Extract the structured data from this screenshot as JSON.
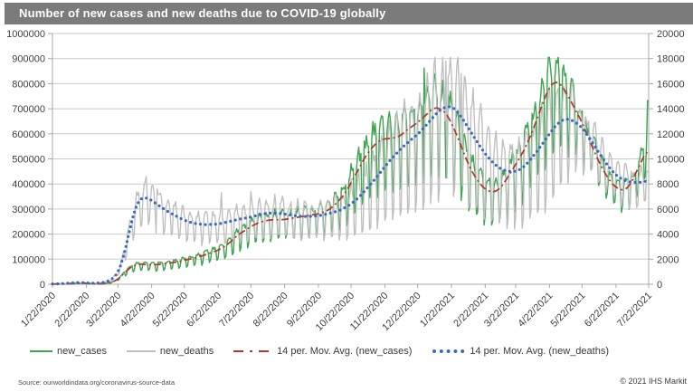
{
  "title": "Number of new cases and new deaths due to COVID-19 globally",
  "footer": {
    "source": "Source: ourworldindata.org/coronavirus-source-data",
    "copyright": "© 2021 IHS Markit"
  },
  "colors": {
    "title_bar": "#7B7B7B",
    "title_text": "#FFFFFF",
    "grid": "#CBCBCB",
    "axis": "#A8A8A8",
    "axis_text": "#3F3F3F",
    "new_cases": "#3FA652",
    "new_deaths": "#BFBFBF",
    "ma_cases": "#B4382E",
    "ma_deaths": "#3A6BC0"
  },
  "legend": [
    {
      "label": "new_cases",
      "series": "new_cases",
      "style": "solid"
    },
    {
      "label": "new_deaths",
      "series": "new_deaths",
      "style": "solid"
    },
    {
      "label": "14 per. Mov. Avg. (new_cases)",
      "series": "ma_cases",
      "style": "dashdot"
    },
    {
      "label": "14 per. Mov. Avg. (new_deaths)",
      "series": "ma_deaths",
      "style": "dotted"
    }
  ],
  "chart_data": {
    "type": "line",
    "title": "Number of new cases and new deaths due to COVID-19 globally",
    "x_tick_labels": [
      "1/22/2020",
      "2/22/2020",
      "3/22/2020",
      "4/22/2020",
      "5/22/2020",
      "6/22/2020",
      "7/22/2020",
      "8/22/2020",
      "9/22/2020",
      "10/22/2020",
      "11/22/2020",
      "12/22/2020",
      "1/22/2021",
      "2/22/2021",
      "3/22/2021",
      "4/22/2021",
      "5/22/2021",
      "6/22/2021",
      "7/22/2021"
    ],
    "x_tick_days": [
      0,
      31,
      60,
      91,
      121,
      152,
      182,
      213,
      244,
      274,
      305,
      335,
      366,
      397,
      425,
      456,
      486,
      517,
      547
    ],
    "days_total": 547,
    "last_day": 546,
    "left_axis": {
      "min": 0,
      "max": 1000000,
      "step": 100000,
      "tick_labels": [
        "0",
        "100000",
        "200000",
        "300000",
        "400000",
        "500000",
        "600000",
        "700000",
        "800000",
        "900000",
        "1000000"
      ]
    },
    "right_axis": {
      "min": 0,
      "max": 20000,
      "step": 2000,
      "tick_labels": [
        "0",
        "2000",
        "4000",
        "6000",
        "8000",
        "10000",
        "12000",
        "14000",
        "16000",
        "18000",
        "20000"
      ]
    },
    "series": [
      {
        "name": "new_cases",
        "axis": "left",
        "color_key": "new_cases",
        "style": "solid",
        "kind": "raw",
        "base": "cases"
      },
      {
        "name": "new_deaths",
        "axis": "right",
        "color_key": "new_deaths",
        "style": "solid",
        "kind": "raw",
        "base": "deaths"
      },
      {
        "name": "14 per. Mov. Avg. (new_cases)",
        "axis": "left",
        "color_key": "ma_cases",
        "style": "dashdot",
        "kind": "avg",
        "base": "cases"
      },
      {
        "name": "14 per. Mov. Avg. (new_deaths)",
        "axis": "right",
        "color_key": "ma_deaths",
        "style": "dotted",
        "kind": "avg",
        "base": "deaths"
      }
    ],
    "cases_avg_points": [
      [
        0,
        600
      ],
      [
        10,
        1500
      ],
      [
        20,
        2500
      ],
      [
        28,
        5000
      ],
      [
        34,
        2200
      ],
      [
        42,
        1500
      ],
      [
        48,
        2500
      ],
      [
        55,
        8000
      ],
      [
        60,
        20000
      ],
      [
        65,
        40000
      ],
      [
        70,
        62000
      ],
      [
        75,
        76000
      ],
      [
        80,
        81000
      ],
      [
        85,
        79000
      ],
      [
        91,
        77000
      ],
      [
        97,
        79000
      ],
      [
        105,
        83000
      ],
      [
        113,
        88000
      ],
      [
        121,
        96000
      ],
      [
        130,
        104000
      ],
      [
        140,
        117000
      ],
      [
        152,
        136000
      ],
      [
        160,
        156000
      ],
      [
        170,
        196000
      ],
      [
        182,
        230000
      ],
      [
        190,
        248000
      ],
      [
        200,
        257000
      ],
      [
        213,
        258000
      ],
      [
        222,
        265000
      ],
      [
        232,
        272000
      ],
      [
        244,
        281000
      ],
      [
        252,
        292000
      ],
      [
        260,
        320000
      ],
      [
        268,
        360000
      ],
      [
        274,
        405000
      ],
      [
        280,
        452000
      ],
      [
        287,
        510000
      ],
      [
        295,
        555000
      ],
      [
        302,
        578000
      ],
      [
        310,
        582000
      ],
      [
        318,
        588000
      ],
      [
        326,
        618000
      ],
      [
        335,
        645000
      ],
      [
        342,
        672000
      ],
      [
        350,
        705000
      ],
      [
        356,
        700000
      ],
      [
        362,
        678000
      ],
      [
        368,
        625000
      ],
      [
        375,
        551000
      ],
      [
        382,
        473000
      ],
      [
        390,
        412000
      ],
      [
        397,
        378000
      ],
      [
        404,
        366000
      ],
      [
        410,
        378000
      ],
      [
        418,
        428000
      ],
      [
        425,
        478000
      ],
      [
        432,
        528000
      ],
      [
        440,
        605000
      ],
      [
        448,
        700000
      ],
      [
        455,
        780000
      ],
      [
        461,
        810000
      ],
      [
        466,
        800000
      ],
      [
        472,
        760000
      ],
      [
        478,
        710000
      ],
      [
        486,
        645000
      ],
      [
        494,
        560000
      ],
      [
        502,
        482000
      ],
      [
        510,
        420000
      ],
      [
        517,
        385000
      ],
      [
        524,
        373000
      ],
      [
        530,
        395000
      ],
      [
        537,
        460000
      ],
      [
        543,
        515000
      ],
      [
        546,
        540000
      ]
    ],
    "deaths_avg_points": [
      [
        0,
        20
      ],
      [
        15,
        80
      ],
      [
        25,
        150
      ],
      [
        32,
        100
      ],
      [
        40,
        80
      ],
      [
        48,
        150
      ],
      [
        55,
        400
      ],
      [
        60,
        900
      ],
      [
        64,
        1800
      ],
      [
        68,
        3200
      ],
      [
        72,
        4800
      ],
      [
        76,
        6100
      ],
      [
        80,
        6800
      ],
      [
        85,
        6950
      ],
      [
        91,
        6700
      ],
      [
        97,
        6300
      ],
      [
        104,
        5900
      ],
      [
        112,
        5500
      ],
      [
        121,
        5100
      ],
      [
        130,
        4850
      ],
      [
        140,
        4750
      ],
      [
        152,
        4800
      ],
      [
        162,
        5000
      ],
      [
        172,
        5200
      ],
      [
        182,
        5350
      ],
      [
        192,
        5600
      ],
      [
        202,
        5700
      ],
      [
        213,
        5600
      ],
      [
        224,
        5450
      ],
      [
        234,
        5400
      ],
      [
        244,
        5450
      ],
      [
        254,
        5650
      ],
      [
        264,
        5900
      ],
      [
        274,
        6400
      ],
      [
        282,
        7000
      ],
      [
        290,
        7800
      ],
      [
        298,
        8600
      ],
      [
        306,
        9500
      ],
      [
        314,
        10300
      ],
      [
        322,
        11000
      ],
      [
        330,
        11600
      ],
      [
        338,
        12200
      ],
      [
        346,
        13000
      ],
      [
        354,
        13800
      ],
      [
        362,
        14200
      ],
      [
        368,
        14100
      ],
      [
        374,
        13500
      ],
      [
        382,
        12400
      ],
      [
        390,
        11300
      ],
      [
        397,
        10400
      ],
      [
        404,
        9700
      ],
      [
        411,
        9200
      ],
      [
        418,
        9000
      ],
      [
        425,
        9000
      ],
      [
        432,
        9300
      ],
      [
        440,
        10100
      ],
      [
        448,
        11000
      ],
      [
        456,
        12000
      ],
      [
        463,
        12800
      ],
      [
        470,
        13200
      ],
      [
        477,
        13100
      ],
      [
        486,
        12500
      ],
      [
        494,
        11500
      ],
      [
        502,
        10400
      ],
      [
        510,
        9400
      ],
      [
        517,
        8700
      ],
      [
        524,
        8300
      ],
      [
        530,
        8150
      ],
      [
        537,
        8100
      ],
      [
        546,
        8250
      ]
    ],
    "weekly_pattern": {
      "cases": [
        1.12,
        1.13,
        1.1,
        1.05,
        0.64,
        0.7,
        1.08
      ],
      "deaths": [
        1.22,
        1.26,
        1.16,
        0.98,
        0.54,
        0.6,
        1.1
      ]
    },
    "amplitude_gain": {
      "cases": [
        [
          0,
          0.85
        ],
        [
          250,
          0.9
        ],
        [
          300,
          1.05
        ],
        [
          460,
          1.0
        ],
        [
          490,
          0.55
        ],
        [
          546,
          0.55
        ]
      ],
      "deaths": [
        [
          0,
          0.7
        ],
        [
          250,
          0.75
        ],
        [
          290,
          1.0
        ],
        [
          320,
          1.1
        ],
        [
          455,
          1.05
        ],
        [
          490,
          0.5
        ],
        [
          546,
          0.45
        ]
      ]
    },
    "noise_amp": {
      "cases": 0.055,
      "deaths": 0.065
    },
    "raw_max": {
      "cases": 905000,
      "deaths": 18100
    },
    "spike_overrides": {
      "cases": [
        [
          341,
          862000
        ],
        [
          546,
          735000
        ]
      ],
      "deaths": [
        [
          86,
          8600
        ],
        [
          96,
          7600
        ],
        [
          155,
          7300
        ],
        [
          182,
          7400
        ],
        [
          361,
          17800
        ],
        [
          375,
          16800
        ]
      ]
    }
  }
}
